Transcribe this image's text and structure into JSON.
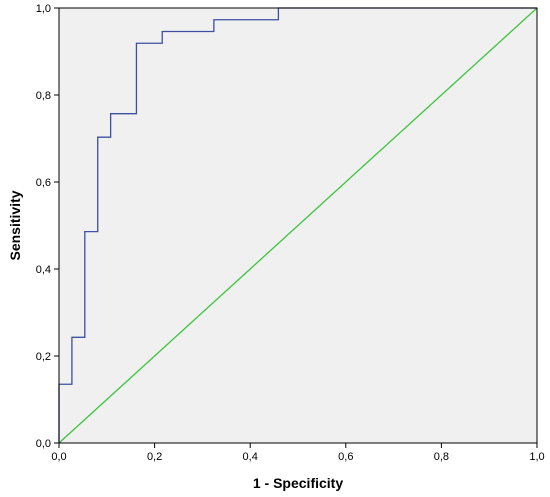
{
  "chart_data": {
    "type": "line",
    "title": "",
    "xlabel": "1 - Specificity",
    "ylabel": "Sensitivity",
    "xlim": [
      0.0,
      1.0
    ],
    "ylim": [
      0.0,
      1.0
    ],
    "x_ticks": [
      "0,0",
      "0,2",
      "0,4",
      "0,6",
      "0,8",
      "1,0"
    ],
    "y_ticks": [
      "0,0",
      "0,2",
      "0,4",
      "0,6",
      "0,8",
      "1,0"
    ],
    "x_tick_values": [
      0.0,
      0.2,
      0.4,
      0.6,
      0.8,
      1.0
    ],
    "y_tick_values": [
      0.0,
      0.2,
      0.4,
      0.6,
      0.8,
      1.0
    ],
    "grid": false,
    "legend": "none",
    "plot_background": "#f0f0f0",
    "series": [
      {
        "color": "#3c4fa0",
        "style": "step",
        "points": [
          [
            0.0,
            0.0
          ],
          [
            0.0,
            0.135
          ],
          [
            0.027,
            0.135
          ],
          [
            0.027,
            0.243
          ],
          [
            0.054,
            0.243
          ],
          [
            0.054,
            0.486
          ],
          [
            0.081,
            0.486
          ],
          [
            0.081,
            0.703
          ],
          [
            0.108,
            0.703
          ],
          [
            0.108,
            0.757
          ],
          [
            0.162,
            0.757
          ],
          [
            0.162,
            0.919
          ],
          [
            0.216,
            0.919
          ],
          [
            0.216,
            0.946
          ],
          [
            0.324,
            0.946
          ],
          [
            0.324,
            0.973
          ],
          [
            0.459,
            0.973
          ],
          [
            0.459,
            1.0
          ],
          [
            1.0,
            1.0
          ]
        ]
      },
      {
        "color": "#3cc43c",
        "style": "reference",
        "points": [
          [
            0.0,
            0.0
          ],
          [
            1.0,
            1.0
          ]
        ]
      }
    ]
  }
}
